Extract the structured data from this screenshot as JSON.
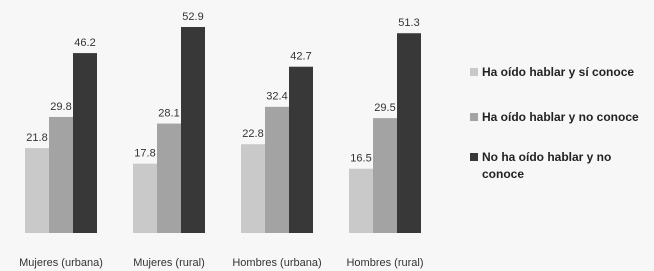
{
  "chart_data": {
    "type": "bar",
    "categories": [
      "Mujeres (urbana)",
      "Mujeres (rural)",
      "Hombres (urbana)",
      "Hombres (rural)"
    ],
    "series": [
      {
        "name": "Ha oído hablar y sí conoce",
        "color": "#c9c9c9",
        "values": [
          21.8,
          17.8,
          22.8,
          16.5
        ]
      },
      {
        "name": "Ha oído hablar y no conoce",
        "color": "#a3a3a3",
        "values": [
          29.8,
          28.1,
          32.4,
          29.5
        ]
      },
      {
        "name": "No ha oído hablar y no conoce",
        "color": "#383838",
        "values": [
          46.2,
          52.9,
          42.7,
          51.3
        ]
      }
    ],
    "legend": "right"
  }
}
